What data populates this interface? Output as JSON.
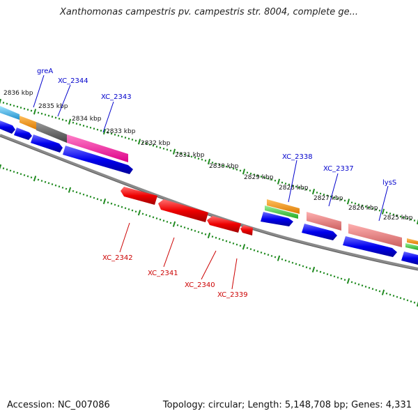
{
  "title": "Xanthomonas campestris pv. campestris str. 8004, complete ge...",
  "footer": {
    "accession": "Accession: NC_007086",
    "summary": "Topology: circular; Length: 5,148,708 bp; Genes: 4,331"
  },
  "colors": {
    "backbone": "#7a7a7a",
    "tick": "#1f8a1f",
    "pos_label": "#0000cc",
    "neg_label": "#cc0000",
    "blue": "#0000ee",
    "red": "#ee0000",
    "orange": "#ff9900",
    "cyan": "#44bbee",
    "gray": "#666666",
    "pink": "#ff2299",
    "salmon": "#ee8080",
    "green": "#44cc44"
  },
  "kbp_labels": [
    "2836 kbp",
    "2835 kbp",
    "2834 kbp",
    "2833 kbp",
    "2832 kbp",
    "2831 kbp",
    "2830 kbp",
    "2829 kbp",
    "2828 kbp",
    "2827 kbp",
    "2826 kbp",
    "2825 kbp"
  ],
  "genes_plus": [
    "greA",
    "XC_2344",
    "XC_2343",
    "XC_2338",
    "XC_2337",
    "lysS"
  ],
  "genes_minus": [
    "XC_2342",
    "XC_2341",
    "XC_2340",
    "XC_2339"
  ]
}
